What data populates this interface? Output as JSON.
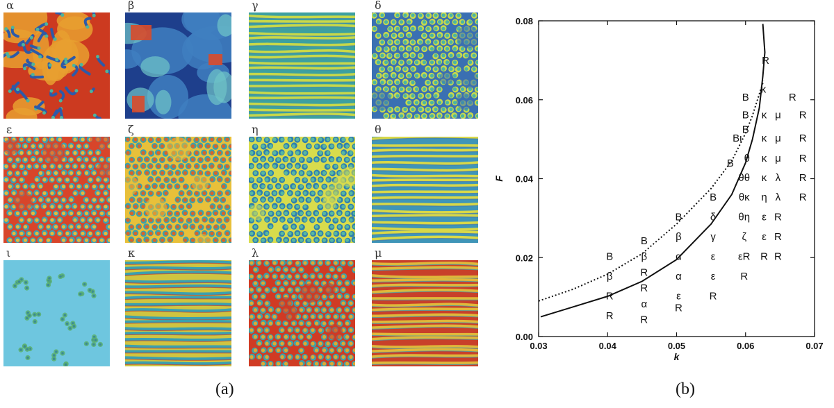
{
  "panel_a": {
    "caption": "(a)",
    "tiles": [
      {
        "label": "α",
        "pattern": "chaos",
        "palette": [
          "#cc3a20",
          "#e8a030",
          "#4fb39b",
          "#2d5aa8"
        ]
      },
      {
        "label": "β",
        "pattern": "patches",
        "palette": [
          "#1e3f8c",
          "#3f7fc0",
          "#6fc5c8",
          "#d94b2a"
        ]
      },
      {
        "label": "γ",
        "pattern": "stripes",
        "palette": [
          "#3da0a0",
          "#c7d84a",
          "#3a7fb0",
          "#c73b25"
        ]
      },
      {
        "label": "δ",
        "pattern": "spots",
        "palette": [
          "#3a70b2",
          "#4bb5a3",
          "#c8d84c",
          "#3a70b2"
        ]
      },
      {
        "label": "ε",
        "pattern": "spots",
        "palette": [
          "#d8452a",
          "#e8b83a",
          "#3f9fb0",
          "#d8452a"
        ]
      },
      {
        "label": "ζ",
        "pattern": "spots",
        "palette": [
          "#e8c03a",
          "#d8652a",
          "#3fa0a8",
          "#e8c03a"
        ]
      },
      {
        "label": "η",
        "pattern": "spots",
        "palette": [
          "#d8dc4c",
          "#58b8a0",
          "#2f7fb0",
          "#d8dc4c"
        ]
      },
      {
        "label": "θ",
        "pattern": "stripes",
        "palette": [
          "#3f95b8",
          "#d8d848",
          "#3a70b0",
          "#d8d848"
        ]
      },
      {
        "label": "ι",
        "pattern": "sparse",
        "palette": [
          "#6ec6df",
          "#5bb070",
          "#2e7a9a",
          "#6ec6df"
        ]
      },
      {
        "label": "κ",
        "pattern": "stripes",
        "palette": [
          "#d0c440",
          "#3aa0b0",
          "#c8402a",
          "#3a70b0"
        ]
      },
      {
        "label": "λ",
        "pattern": "spots",
        "palette": [
          "#d03b24",
          "#e0a830",
          "#3fa0a8",
          "#d03b24"
        ]
      },
      {
        "label": "μ",
        "pattern": "stripes",
        "palette": [
          "#c8402a",
          "#e0b83a",
          "#3a9ab0",
          "#c8402a"
        ]
      }
    ]
  },
  "panel_b": {
    "caption": "(b)"
  },
  "chart_data": {
    "type": "scatter",
    "xlabel": "k",
    "ylabel": "F",
    "xlim": [
      0.03,
      0.07
    ],
    "ylim": [
      0.0,
      0.08
    ],
    "x_ticks": [
      "0.03",
      "0.04",
      "0.05",
      "0.06",
      "0.07"
    ],
    "y_ticks": [
      "0.00",
      "0.02",
      "0.04",
      "0.06",
      "0.08"
    ],
    "solid_curve": [
      [
        0.0303,
        0.005
      ],
      [
        0.035,
        0.0075
      ],
      [
        0.04,
        0.0102
      ],
      [
        0.045,
        0.014
      ],
      [
        0.05,
        0.0195
      ],
      [
        0.055,
        0.0285
      ],
      [
        0.058,
        0.036
      ],
      [
        0.06,
        0.044
      ],
      [
        0.061,
        0.05
      ],
      [
        0.062,
        0.058
      ],
      [
        0.0625,
        0.066
      ],
      [
        0.0628,
        0.072
      ],
      [
        0.0625,
        0.0792
      ]
    ],
    "dotted_curve": [
      [
        0.03,
        0.009
      ],
      [
        0.035,
        0.012
      ],
      [
        0.04,
        0.0158
      ],
      [
        0.045,
        0.021
      ],
      [
        0.05,
        0.0285
      ],
      [
        0.055,
        0.0375
      ],
      [
        0.058,
        0.0445
      ],
      [
        0.06,
        0.0515
      ],
      [
        0.061,
        0.056
      ],
      [
        0.062,
        0.0615
      ],
      [
        0.0626,
        0.0648
      ]
    ],
    "markers": [
      {
        "k": 0.0629,
        "F": 0.07,
        "text": "R"
      },
      {
        "k": 0.0626,
        "F": 0.0627,
        "text": "κ"
      },
      {
        "k": 0.0668,
        "F": 0.0607,
        "text": "R"
      },
      {
        "k": 0.06,
        "F": 0.0607,
        "text": "B"
      },
      {
        "k": 0.06,
        "F": 0.0562,
        "text": "B"
      },
      {
        "k": 0.0627,
        "F": 0.0562,
        "text": "κ"
      },
      {
        "k": 0.0647,
        "F": 0.0562,
        "text": "μ"
      },
      {
        "k": 0.0683,
        "F": 0.0562,
        "text": "R"
      },
      {
        "k": 0.06,
        "F": 0.0525,
        "text": "B"
      },
      {
        "k": 0.0588,
        "F": 0.0503,
        "text": "Bι"
      },
      {
        "k": 0.0627,
        "F": 0.0503,
        "text": "κ"
      },
      {
        "k": 0.0647,
        "F": 0.0503,
        "text": "μ"
      },
      {
        "k": 0.0683,
        "F": 0.0503,
        "text": "R"
      },
      {
        "k": 0.0602,
        "F": 0.0452,
        "text": "θ"
      },
      {
        "k": 0.0627,
        "F": 0.0452,
        "text": "κ"
      },
      {
        "k": 0.0647,
        "F": 0.0452,
        "text": "μ"
      },
      {
        "k": 0.0683,
        "F": 0.0452,
        "text": "R"
      },
      {
        "k": 0.0578,
        "F": 0.044,
        "text": "B"
      },
      {
        "k": 0.0598,
        "F": 0.0403,
        "text": "θθ"
      },
      {
        "k": 0.0627,
        "F": 0.0403,
        "text": "κ"
      },
      {
        "k": 0.0647,
        "F": 0.0403,
        "text": "λ"
      },
      {
        "k": 0.0683,
        "F": 0.0403,
        "text": "R"
      },
      {
        "k": 0.0553,
        "F": 0.0353,
        "text": "B"
      },
      {
        "k": 0.0598,
        "F": 0.0353,
        "text": "θκ"
      },
      {
        "k": 0.0627,
        "F": 0.0353,
        "text": "η"
      },
      {
        "k": 0.0647,
        "F": 0.0353,
        "text": "λ"
      },
      {
        "k": 0.0683,
        "F": 0.0353,
        "text": "R"
      },
      {
        "k": 0.0503,
        "F": 0.0303,
        "text": "B"
      },
      {
        "k": 0.0553,
        "F": 0.0303,
        "text": "δ"
      },
      {
        "k": 0.0598,
        "F": 0.0303,
        "text": "θη"
      },
      {
        "k": 0.0627,
        "F": 0.0303,
        "text": "ε"
      },
      {
        "k": 0.0647,
        "F": 0.0303,
        "text": "R"
      },
      {
        "k": 0.0453,
        "F": 0.0243,
        "text": "B"
      },
      {
        "k": 0.0503,
        "F": 0.0253,
        "text": "β"
      },
      {
        "k": 0.0553,
        "F": 0.0253,
        "text": "γ"
      },
      {
        "k": 0.0598,
        "F": 0.0253,
        "text": "ζ"
      },
      {
        "k": 0.0627,
        "F": 0.0253,
        "text": "ε"
      },
      {
        "k": 0.0647,
        "F": 0.0253,
        "text": "R"
      },
      {
        "k": 0.0403,
        "F": 0.0203,
        "text": "B"
      },
      {
        "k": 0.0453,
        "F": 0.0203,
        "text": "β"
      },
      {
        "k": 0.0503,
        "F": 0.0203,
        "text": "α"
      },
      {
        "k": 0.0553,
        "F": 0.0203,
        "text": "ε"
      },
      {
        "k": 0.0598,
        "F": 0.0203,
        "text": "εR"
      },
      {
        "k": 0.0627,
        "F": 0.0203,
        "text": "R"
      },
      {
        "k": 0.0647,
        "F": 0.0203,
        "text": "R"
      },
      {
        "k": 0.0403,
        "F": 0.0153,
        "text": "β"
      },
      {
        "k": 0.0453,
        "F": 0.0163,
        "text": "R"
      },
      {
        "k": 0.0503,
        "F": 0.0153,
        "text": "α"
      },
      {
        "k": 0.0553,
        "F": 0.0153,
        "text": "ε"
      },
      {
        "k": 0.0598,
        "F": 0.0153,
        "text": "R"
      },
      {
        "k": 0.0403,
        "F": 0.0103,
        "text": "R"
      },
      {
        "k": 0.0453,
        "F": 0.0123,
        "text": "R"
      },
      {
        "k": 0.0503,
        "F": 0.0103,
        "text": "ε"
      },
      {
        "k": 0.0553,
        "F": 0.0103,
        "text": "R"
      },
      {
        "k": 0.0453,
        "F": 0.0083,
        "text": "α"
      },
      {
        "k": 0.0503,
        "F": 0.0073,
        "text": "R"
      },
      {
        "k": 0.0403,
        "F": 0.0053,
        "text": "R"
      },
      {
        "k": 0.0453,
        "F": 0.0043,
        "text": "R"
      }
    ]
  }
}
